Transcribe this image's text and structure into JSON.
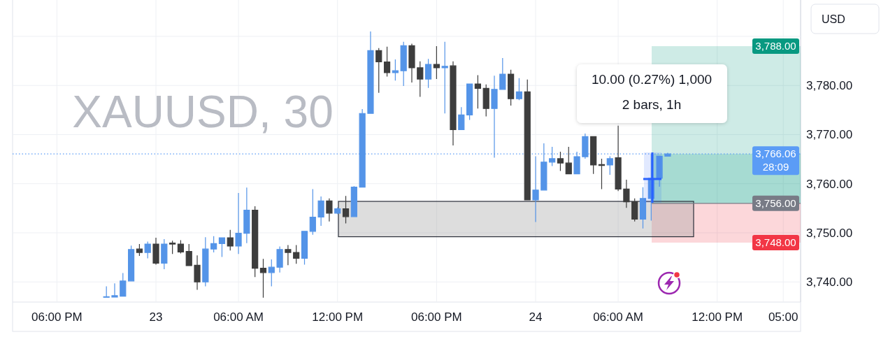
{
  "chart_data": {
    "type": "candlestick",
    "title": "XAUUSD, 30",
    "ylabel": "USD",
    "categories": [
      "06:00 PM",
      null,
      null,
      null,
      null,
      null,
      null,
      null,
      null,
      null,
      null,
      null,
      "23",
      null,
      null,
      null,
      null,
      null,
      null,
      null,
      null,
      null,
      "06:00 AM",
      null,
      null,
      null,
      null,
      null,
      null,
      null,
      null,
      null,
      null,
      null,
      "12:00 PM",
      null,
      null,
      null,
      null,
      null,
      null,
      null,
      null,
      null,
      null,
      null,
      "06:00 PM",
      null,
      null,
      null,
      null,
      null,
      null,
      null,
      null,
      null,
      null,
      null,
      "24",
      null,
      null,
      null,
      null,
      null,
      null,
      null,
      null,
      null,
      "06:00 AM",
      null,
      null,
      null,
      null,
      null,
      null,
      null,
      null,
      null,
      null,
      null,
      "12:00 PM",
      null,
      null,
      null,
      null,
      null,
      null,
      null,
      "05:00"
    ],
    "ohlc": [
      null,
      null,
      null,
      null,
      null,
      null,
      [
        3737.0,
        3739.1,
        3736.9,
        3737.0
      ],
      [
        3736.9,
        3739.7,
        3736.9,
        3737.2
      ],
      [
        3737.1,
        3741.8,
        3737.1,
        3740.2
      ],
      [
        3740.2,
        3747.4,
        3740.2,
        3746.6
      ],
      [
        3746.7,
        3747.7,
        3745.3,
        3746.0
      ],
      [
        3746.0,
        3748.2,
        3744.8,
        3747.7
      ],
      [
        3747.7,
        3749.0,
        3743.5,
        3743.8
      ],
      [
        3743.8,
        3748.7,
        3742.6,
        3747.7
      ],
      [
        3747.9,
        3748.4,
        3745.7,
        3747.7
      ],
      [
        3747.7,
        3748.5,
        3745.8,
        3746.1
      ],
      [
        3746.2,
        3747.7,
        3743.3,
        3743.3
      ],
      [
        3743.4,
        3745.4,
        3738.4,
        3740.0
      ],
      [
        3740.0,
        3749.1,
        3739.1,
        3746.7
      ],
      [
        3746.7,
        3749.3,
        3746.0,
        3747.8
      ],
      [
        3747.8,
        3749.0,
        3745.1,
        3749.0
      ],
      [
        3749.0,
        3750.6,
        3746.4,
        3747.3
      ],
      [
        3747.3,
        3758.1,
        3745.7,
        3749.9
      ],
      [
        3749.9,
        3759.2,
        3747.9,
        3754.6
      ],
      [
        3754.6,
        3755.4,
        3741.0,
        3742.8
      ],
      [
        3742.8,
        3744.7,
        3736.8,
        3741.9
      ],
      [
        3741.9,
        3744.6,
        3739.1,
        3743.0
      ],
      [
        3743.0,
        3747.2,
        3741.9,
        3746.6
      ],
      [
        3746.6,
        3747.5,
        3743.4,
        3746.0
      ],
      [
        3746.0,
        3747.5,
        3743.7,
        3744.8
      ],
      [
        3744.8,
        3750.4,
        3743.5,
        3750.3
      ],
      [
        3750.3,
        3758.9,
        3749.6,
        3753.2
      ],
      [
        3753.2,
        3757.4,
        3751.4,
        3756.5
      ],
      [
        3756.5,
        3757.0,
        3752.3,
        3754.0
      ],
      [
        3754.0,
        3755.2,
        3753.8,
        3754.9
      ],
      [
        3754.9,
        3757.5,
        3751.9,
        3753.3
      ],
      [
        3753.3,
        3759.5,
        3753.3,
        3759.3
      ],
      [
        3759.3,
        3775.2,
        3759.2,
        3774.3
      ],
      [
        3774.3,
        3791.0,
        3774.3,
        3787.1
      ],
      [
        3787.1,
        3787.6,
        3778.5,
        3784.8
      ],
      [
        3784.8,
        3787.9,
        3781.8,
        3782.6
      ],
      [
        3782.6,
        3785.3,
        3781.0,
        3783.0
      ],
      [
        3783.0,
        3788.9,
        3779.9,
        3788.1
      ],
      [
        3788.1,
        3788.5,
        3780.6,
        3783.6
      ],
      [
        3783.6,
        3784.9,
        3777.7,
        3781.3
      ],
      [
        3781.3,
        3785.4,
        3779.5,
        3784.3
      ],
      [
        3784.3,
        3788.0,
        3781.3,
        3783.6
      ],
      [
        3783.6,
        3788.9,
        3774.3,
        3783.9
      ],
      [
        3784.0,
        3784.9,
        3767.8,
        3771.0
      ],
      [
        3771.0,
        3775.6,
        3771.0,
        3774.0
      ],
      [
        3774.0,
        3780.3,
        3773.0,
        3780.3
      ],
      [
        3780.3,
        3782.1,
        3775.3,
        3779.4
      ],
      [
        3779.4,
        3780.2,
        3773.7,
        3775.3
      ],
      [
        3775.3,
        3782.0,
        3765.3,
        3779.2
      ],
      [
        3779.2,
        3785.6,
        3779.2,
        3782.3
      ],
      [
        3782.3,
        3783.2,
        3775.9,
        3777.3
      ],
      [
        3777.3,
        3781.5,
        3777.0,
        3778.7
      ],
      [
        3778.7,
        3781.2,
        3756.6,
        3756.7
      ],
      [
        3756.7,
        3765.6,
        3752.2,
        3758.7
      ],
      [
        3758.7,
        3768.2,
        3758.7,
        3764.4
      ],
      [
        3764.4,
        3767.5,
        3763.6,
        3765.1
      ],
      [
        3765.1,
        3766.5,
        3762.6,
        3764.2
      ],
      [
        3764.2,
        3767.5,
        3761.9,
        3762.0
      ],
      [
        3762.0,
        3766.5,
        3762.0,
        3765.5
      ],
      [
        3765.5,
        3770.2,
        3765.1,
        3769.6
      ],
      [
        3769.6,
        3769.6,
        3762.0,
        3763.8
      ],
      [
        3763.9,
        3765.1,
        3758.9,
        3763.7
      ],
      [
        3763.8,
        3765.6,
        3761.8,
        3765.1
      ],
      [
        3765.3,
        3771.8,
        3758.5,
        3758.9
      ],
      [
        3758.9,
        3760.8,
        3755.1,
        3756.3
      ],
      [
        3756.3,
        3757.0,
        3752.3,
        3752.8
      ],
      [
        3752.8,
        3759.3,
        3750.9,
        3757.0
      ],
      [
        3757.0,
        3766.1,
        3752.5,
        3761.1
      ],
      [
        3761.1,
        3765.6,
        3759.4,
        3765.6
      ],
      [
        3765.6,
        3766.3,
        3765.6,
        3766.06
      ],
      null,
      null,
      null,
      null,
      null,
      null,
      null,
      null,
      null,
      null,
      null,
      null,
      null,
      null
    ],
    "colors": [
      null,
      null,
      null,
      null,
      null,
      null,
      "#5494e8",
      "#5494e8",
      "#5494e8",
      "#5494e8",
      "#3d3d3d",
      "#5494e8",
      "#3d3d3d",
      "#5494e8",
      "#3d3d3d",
      "#3d3d3d",
      "#3d3d3d",
      "#3d3d3d",
      "#5494e8",
      "#5494e8",
      "#5494e8",
      "#3d3d3d",
      "#5494e8",
      "#5494e8",
      "#3d3d3d",
      "#3d3d3d",
      "#5494e8",
      "#5494e8",
      "#3d3d3d",
      "#3d3d3d",
      "#5494e8",
      "#5494e8",
      "#5494e8",
      "#3d3d3d",
      "#5494e8",
      "#3d3d3d",
      "#5494e8",
      "#5494e8",
      "#5494e8",
      "#3d3d3d",
      "#3d3d3d",
      "#5494e8",
      "#5494e8",
      "#3d3d3d",
      "#3d3d3d",
      "#5494e8",
      "#3d3d3d",
      "#5494e8",
      "#3d3d3d",
      "#5494e8",
      "#5494e8",
      "#3d3d3d",
      "#3d3d3d",
      "#5494e8",
      "#5494e8",
      "#3d3d3d",
      "#5494e8",
      "#3d3d3d",
      "#5494e8",
      "#5494e8",
      "#5494e8",
      "#3d3d3d",
      "#3d3d3d",
      "#5494e8",
      "#5494e8",
      "#3d3d3d",
      "#3d3d3d",
      "#5494e8",
      "#3d3d3d",
      "#3d3d3d",
      "#3d3d3d",
      "#5494e8",
      "#5494e8",
      "#5494e8",
      "#5494e8",
      null,
      null,
      null,
      null,
      null,
      null,
      null,
      null,
      null,
      null,
      null,
      null,
      null,
      null
    ],
    "ylim": [
      3735.9,
      3797.4
    ],
    "yticks": [
      {
        "value": 3740,
        "label": "3,740.00"
      },
      {
        "value": 3750,
        "label": "3,750.00"
      },
      {
        "value": 3760,
        "label": "3,760.00"
      },
      {
        "value": 3770,
        "label": "3,770.00"
      },
      {
        "value": 3780,
        "label": "3,780.00"
      },
      {
        "value": 3790,
        "label": null
      }
    ],
    "grid": true,
    "ref_lines": [
      {
        "axis": "y",
        "value": 3766.06,
        "label": "3,766.06\n28:09",
        "color": "#5b9cf6",
        "line_style": "dotted"
      },
      {
        "axis": "y",
        "value": 3756,
        "label": "3,756.00",
        "color": "#787b86"
      }
    ],
    "bands": [
      {
        "axis": "y",
        "from": 3756,
        "to": 3788,
        "label": "3,788.00",
        "color": "#089981"
      },
      {
        "axis": "y",
        "from": 3756,
        "to": 3766.06,
        "color": "#089981"
      },
      {
        "axis": "y",
        "from": 3756,
        "to": 3748,
        "label": "3,748.00",
        "color": "#f23645"
      },
      {
        "axis": "y",
        "from": 3749.2,
        "to": 3756.4,
        "color": "#9e9e9e"
      }
    ],
    "annotations": [
      "10.00 (0.27%) 1,000",
      "2 bars, 1h"
    ]
  }
}
